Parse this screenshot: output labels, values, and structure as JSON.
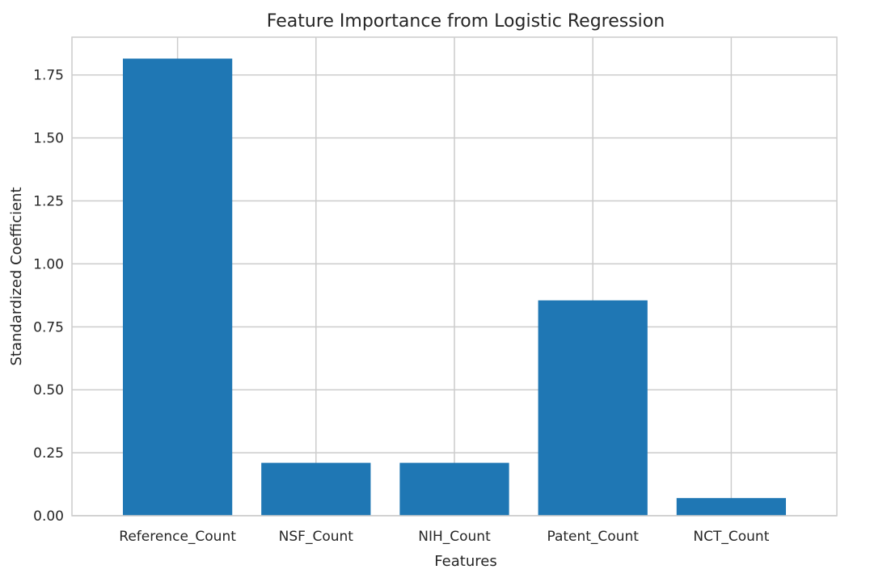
{
  "chart_data": {
    "type": "bar",
    "title": "Feature Importance from Logistic Regression",
    "xlabel": "Features",
    "ylabel": "Standardized Coefficient",
    "categories": [
      "Reference_Count",
      "NSF_Count",
      "NIH_Count",
      "Patent_Count",
      "NCT_Count"
    ],
    "values": [
      1.815,
      0.21,
      0.21,
      0.855,
      0.07
    ],
    "ylim": [
      0,
      1.9
    ],
    "yticks": [
      0.0,
      0.25,
      0.5,
      0.75,
      1.0,
      1.25,
      1.5,
      1.75
    ],
    "ytick_labels": [
      "0.00",
      "0.25",
      "0.50",
      "0.75",
      "1.00",
      "1.25",
      "1.50",
      "1.75"
    ],
    "grid": true,
    "bar_color": "#1f77b4",
    "grid_color": "#cccccc"
  }
}
